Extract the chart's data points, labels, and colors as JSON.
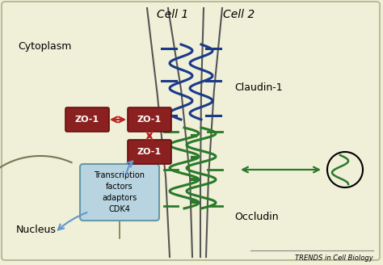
{
  "bg_color": "#f0f0d8",
  "border_color": "#bbbb99",
  "cell_line_color": "#555555",
  "blue_protein_color": "#1a3a8a",
  "green_protein_color": "#2a7a2a",
  "zo1_box_color": "#8b2020",
  "zo1_text_color": "#ffffff",
  "arrow_red_color": "#bb2222",
  "arrow_green_color": "#2a7a2a",
  "arrow_blue_color": "#6699cc",
  "transcription_box_color": "#b8d4e0",
  "transcription_border_color": "#6699aa",
  "nucleus_color": "#777755",
  "title_cell1": "Cell 1",
  "title_cell2": "Cell 2",
  "label_cytoplasm": "Cytoplasm",
  "label_nucleus": "Nucleus",
  "label_claudin": "Claudin-1",
  "label_occludin": "Occludin",
  "label_zo1": "ZO-1",
  "label_transcription": "Transcription\nfactors\nadaptors\nCDK4",
  "label_trends": "TRENDS in Cell Biology",
  "figsize": [
    4.74,
    3.28
  ],
  "dpi": 100
}
